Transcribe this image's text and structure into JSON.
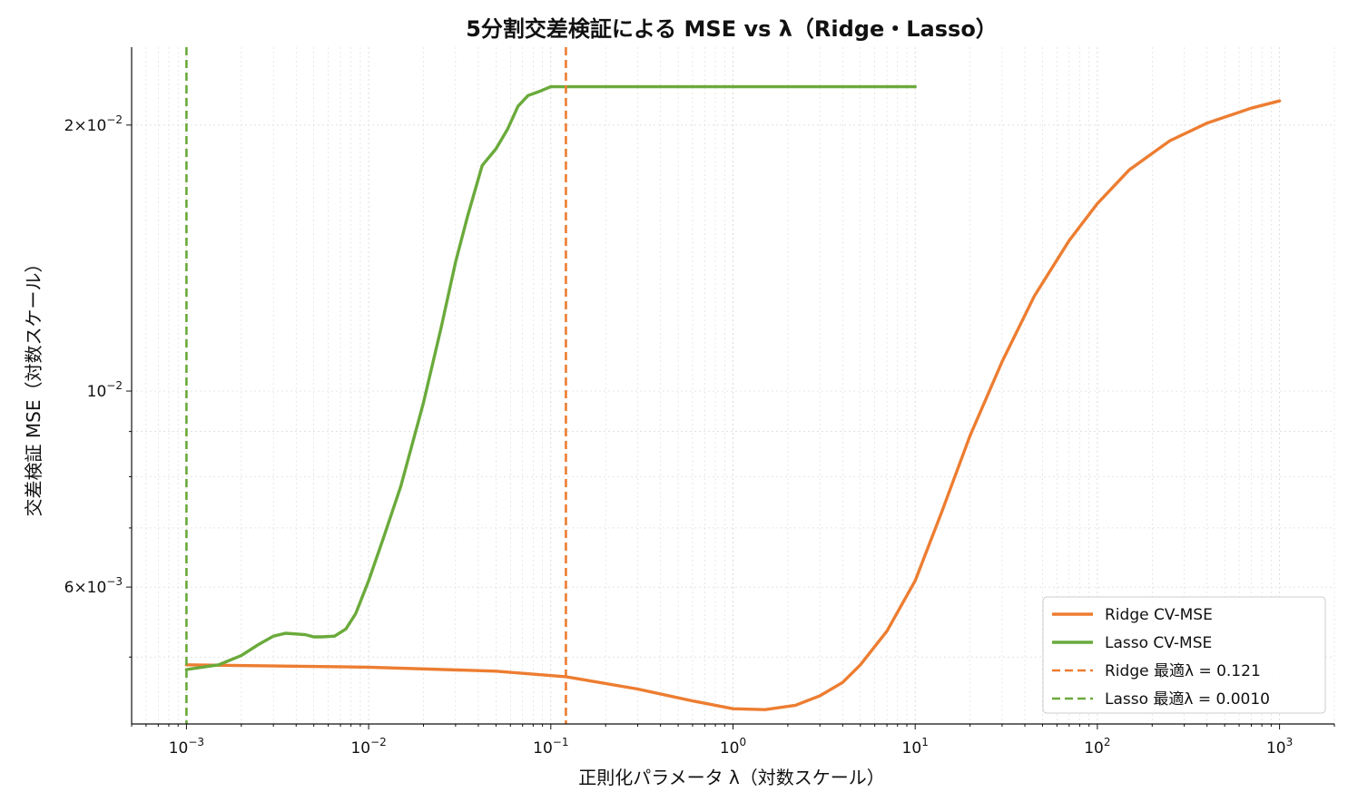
{
  "chart_data": {
    "type": "line",
    "title": "5分割交差検証による MSE vs λ（Ridge・Lasso）",
    "xlabel": "正則化パラメータ λ（対数スケール）",
    "ylabel": "交差検証 MSE（対数スケール）",
    "xscale": "log",
    "yscale": "log",
    "xlim": [
      0.0005,
      2000
    ],
    "ylim": [
      0.0042,
      0.0245
    ],
    "grid": true,
    "legend_position": "bottom-right",
    "x_ticks": [
      {
        "base": "10",
        "exp": "−3"
      },
      {
        "base": "10",
        "exp": "−2"
      },
      {
        "base": "10",
        "exp": "−1"
      },
      {
        "base": "10",
        "exp": "0"
      },
      {
        "base": "10",
        "exp": "1"
      },
      {
        "base": "10",
        "exp": "2"
      },
      {
        "base": "10",
        "exp": "3"
      }
    ],
    "x_tick_values": [
      0.001,
      0.01,
      0.1,
      1,
      10,
      100,
      1000
    ],
    "y_ticks": [
      {
        "value": 0.02,
        "mant": "2×",
        "base": "10",
        "exp": "−2"
      },
      {
        "value": 0.01,
        "mant": "",
        "base": "10",
        "exp": "−2"
      },
      {
        "value": 0.006,
        "mant": "6×",
        "base": "10",
        "exp": "−3"
      }
    ],
    "series": [
      {
        "name": "Ridge CV-MSE",
        "color": "#ed7d31",
        "style": "solid",
        "x": [
          0.001,
          0.01,
          0.05,
          0.121,
          0.3,
          0.6,
          1,
          1.5,
          2.2,
          3,
          4,
          5,
          7,
          10,
          14,
          20,
          30,
          45,
          70,
          100,
          150,
          250,
          400,
          700,
          1000
        ],
        "y": [
          0.0049,
          0.00487,
          0.00482,
          0.00475,
          0.0046,
          0.00446,
          0.00437,
          0.00436,
          0.00441,
          0.00452,
          0.00468,
          0.0049,
          0.00535,
          0.0061,
          0.0073,
          0.0089,
          0.0108,
          0.0128,
          0.0148,
          0.0163,
          0.0178,
          0.0192,
          0.0201,
          0.0209,
          0.0213
        ]
      },
      {
        "name": "Lasso CV-MSE",
        "color": "#6aaa3b",
        "style": "solid",
        "x": [
          0.001,
          0.0015,
          0.002,
          0.0025,
          0.003,
          0.0035,
          0.0045,
          0.005,
          0.0055,
          0.0065,
          0.0075,
          0.0085,
          0.01,
          0.012,
          0.015,
          0.02,
          0.025,
          0.03,
          0.035,
          0.042,
          0.05,
          0.058,
          0.066,
          0.075,
          0.085,
          0.1,
          0.15,
          1,
          10
        ],
        "y": [
          0.00484,
          0.0049,
          0.00502,
          0.00517,
          0.00528,
          0.00532,
          0.0053,
          0.00527,
          0.00527,
          0.00528,
          0.00538,
          0.0056,
          0.0061,
          0.0068,
          0.0078,
          0.0097,
          0.0118,
          0.014,
          0.0158,
          0.018,
          0.0188,
          0.0198,
          0.021,
          0.0216,
          0.0218,
          0.0221,
          0.0221,
          0.0221,
          0.0221
        ]
      },
      {
        "name": "Ridge 最適λ = 0.121",
        "color": "#ed7d31",
        "style": "dashed",
        "vline_x": 0.121
      },
      {
        "name": "Lasso 最適λ = 0.0010",
        "color": "#6aaa3b",
        "style": "dashed",
        "vline_x": 0.001
      }
    ]
  }
}
